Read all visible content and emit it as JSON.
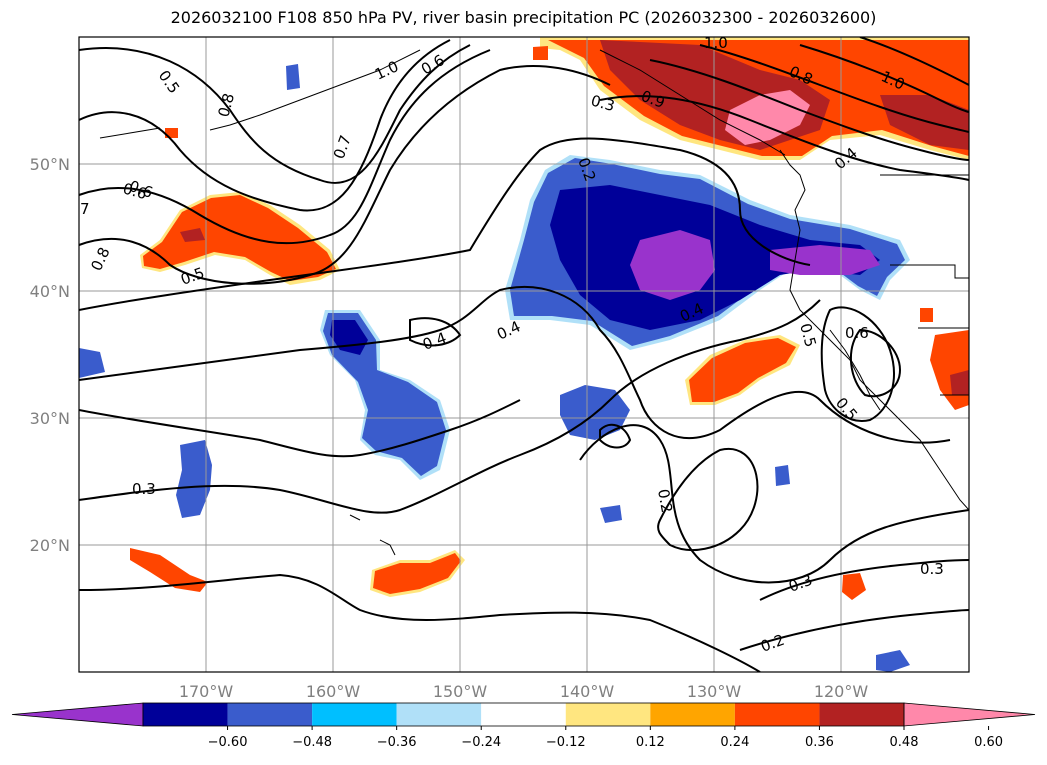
{
  "title": "2026032100 F108 850 hPa PV, river basin precipitation PC (2026032300 - 2026032600)",
  "map": {
    "projection": "PlateCarree",
    "lon_range": [
      -180,
      -110
    ],
    "lat_range": [
      10,
      60
    ],
    "gridlines": true,
    "lat_ticks": [
      {
        "value": 50,
        "label": "50°N"
      },
      {
        "value": 40,
        "label": "40°N"
      },
      {
        "value": 30,
        "label": "30°N"
      },
      {
        "value": 20,
        "label": "20°N"
      }
    ],
    "lon_ticks": [
      {
        "value": -170,
        "label": "170°W"
      },
      {
        "value": -160,
        "label": "160°W"
      },
      {
        "value": -150,
        "label": "150°W"
      },
      {
        "value": -140,
        "label": "140°W"
      },
      {
        "value": -130,
        "label": "130°W"
      },
      {
        "value": -120,
        "label": "120°W"
      }
    ]
  },
  "contour_labels": [
    "0.5",
    "0.8",
    "0.7",
    "0.6",
    "1.0",
    "0.6",
    "0.3",
    "0.9",
    "0.8",
    "1.0",
    "1.0",
    "0.4",
    "0.2",
    "0.6",
    "7",
    "0.8",
    "0.5",
    "0.4",
    "0.4",
    "0.4",
    "0.5",
    "0.6",
    "0.5",
    "0.3",
    "0.2",
    "0.3",
    "0.3",
    "0.2"
  ],
  "colorbar": {
    "ticks": [
      "−0.60",
      "−0.48",
      "−0.36",
      "−0.24",
      "−0.12",
      "0.12",
      "0.24",
      "0.36",
      "0.48",
      "0.60"
    ],
    "colors": [
      "#9933cc",
      "#000099",
      "#3a5ccc",
      "#00bfff",
      "#b0e0f8",
      "#ffffff",
      "#ffe680",
      "#ffa500",
      "#ff4500",
      "#b22222",
      "#ff88aa"
    ]
  },
  "legend_colors": {
    "strong_negative": "#000099",
    "negative": "#3a5ccc",
    "positive": "#ff4500",
    "strong_positive": "#b22222",
    "extreme_positive": "#ff88aa",
    "extreme_negative": "#9933cc"
  }
}
